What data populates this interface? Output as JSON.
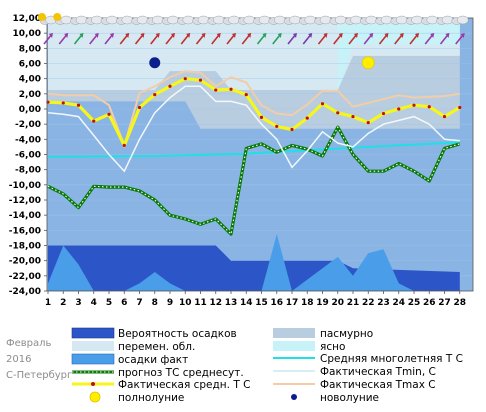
{
  "chart_data": {
    "type": "line",
    "period": {
      "month": "Февраль",
      "year": "2016",
      "city": "С-Петербург"
    },
    "ylim": [
      -24,
      12
    ],
    "y_ticks": [
      "12,00",
      "10,00",
      "8,00",
      "6,00",
      "4,00",
      "2,00",
      "0,00",
      "-2,00",
      "-4,00",
      "-6,00",
      "-8,00",
      "-10,00",
      "-12,00",
      "-14,00",
      "-16,00",
      "-18,00",
      "-20,00",
      "-22,00",
      "-24,00"
    ],
    "x_ticks": [
      "1",
      "2",
      "3",
      "4",
      "5",
      "6",
      "7",
      "8",
      "9",
      "10",
      "11",
      "12",
      "13",
      "14",
      "15",
      "16",
      "17",
      "18",
      "19",
      "20",
      "21",
      "22",
      "23",
      "24",
      "25",
      "26",
      "27",
      "28"
    ],
    "overcast": [
      [
        1,
        1
      ],
      [
        10,
        1
      ],
      [
        11,
        -2.6
      ],
      [
        14,
        -2.6
      ],
      [
        15,
        -2.6
      ],
      [
        28,
        -2.6
      ]
    ],
    "variable_clouds": [
      [
        1,
        2.5
      ],
      [
        8,
        2.5
      ],
      [
        9,
        5
      ],
      [
        12,
        5
      ],
      [
        13,
        2.5
      ],
      [
        20,
        2.5
      ],
      [
        21,
        7
      ],
      [
        28,
        7
      ]
    ],
    "clear": [
      [
        20,
        2.5
      ],
      [
        21,
        8.5
      ],
      [
        28,
        8.5
      ]
    ],
    "precip_probability": [
      [
        1,
        -18
      ],
      [
        12,
        -18
      ],
      [
        13,
        -20
      ],
      [
        20,
        -20
      ],
      [
        21,
        -21
      ],
      [
        28,
        -21.5
      ]
    ],
    "precip_fact": [
      [
        1,
        -23
      ],
      [
        2,
        -18
      ],
      [
        3,
        -20.5
      ],
      [
        4,
        -24
      ],
      [
        6,
        -24
      ],
      [
        7,
        -23
      ],
      [
        8,
        -21.5
      ],
      [
        9,
        -23
      ],
      [
        10,
        -24
      ],
      [
        14,
        -24
      ],
      [
        15,
        -24
      ],
      [
        16,
        -16.5
      ],
      [
        17,
        -24
      ],
      [
        20,
        -19.5
      ],
      [
        21,
        -22
      ],
      [
        22,
        -19
      ],
      [
        23,
        -18.5
      ],
      [
        24,
        -23
      ],
      [
        25,
        -24
      ],
      [
        28,
        -24
      ]
    ],
    "climate_norm": [
      [
        1,
        -6.3
      ],
      [
        8,
        -6.2
      ],
      [
        14,
        -5.9
      ],
      [
        21,
        -5.1
      ],
      [
        28,
        -4.4
      ]
    ],
    "forecast_mean": [
      -10.2,
      -11.2,
      -13,
      -10.2,
      -10.3,
      -10.3,
      -10.8,
      -12,
      -14,
      -14.5,
      -15.2,
      -14.5,
      -16.5,
      -5.2,
      -4.6,
      -5.7,
      -4.8,
      -5.3,
      -6.2,
      -2.4,
      -6,
      -8.2,
      -8.2,
      -7.2,
      -8.2,
      -9.5,
      -5.2,
      -4.6
    ],
    "actual_mean": [
      0.9,
      0.8,
      0.5,
      -1.6,
      -0.7,
      -4.8,
      0.2,
      1.9,
      3,
      4,
      3.8,
      2.5,
      2.6,
      1.9,
      -1.1,
      -2.3,
      -2.7,
      -1.2,
      0.7,
      -0.5,
      -1,
      -1.8,
      -0.6,
      0,
      0.5,
      0.3,
      -1,
      0.2
    ],
    "actual_tmin": [
      -0.5,
      -0.7,
      -1,
      -3.5,
      -6,
      -8.2,
      -4,
      -0.5,
      1.5,
      3,
      3,
      1,
      1,
      0.5,
      -2,
      -4,
      -7.7,
      -5.5,
      -3,
      -4.5,
      -5,
      -3.2,
      -2,
      -1.5,
      -1,
      -2,
      -4,
      -4.2
    ],
    "actual_tmax": [
      2,
      1.8,
      1.8,
      1.8,
      0.5,
      -4.8,
      2.1,
      3,
      4.2,
      5,
      4.8,
      3,
      4.2,
      3.5,
      0.5,
      -0.6,
      -0.8,
      0.6,
      2.4,
      2.4,
      0.3,
      0.8,
      1.3,
      1.8,
      1.5,
      1.6,
      1.7,
      2
    ],
    "full_moon": {
      "day": 22,
      "y": 6.1
    },
    "new_moon": {
      "day": 8,
      "y": 6.1
    },
    "wind_arrow_colors": [
      "#9a3aa8",
      "#9a3aa8",
      "#2aa05a",
      "#9a3aa8",
      "#9a3aa8",
      "#c03030",
      "#c03030",
      "#c03030",
      "#c03030",
      "#c03030",
      "#c03030",
      "#c03030",
      "#c03030",
      "#c03030",
      "#2aa05a",
      "#2aa05a",
      "#7a3aa8",
      "#7a3aa8",
      "#c03030",
      "#c03030",
      "#c03030",
      "#9a3aa8",
      "#c03030",
      "#c03030",
      "#c03030",
      "#9a3aa8",
      "#9a3aa8",
      "#9a3aa8"
    ],
    "colors": {
      "plot_bg": "#8ab4e3",
      "overcast": "#b9cde0",
      "variable_clouds": "#d6e9f2",
      "clear": "#c6f2f8",
      "precip_probability": "#2c56c7",
      "precip_fact": "#4a9de9",
      "climate_norm": "#1ee0e5",
      "forecast_mean": "#0a7a0a",
      "actual_mean": "#f6f61a",
      "tmin": "#f2f8fb",
      "tmax": "#f1cda9",
      "full_moon": "#ffee00",
      "new_moon": "#0c1e8c"
    },
    "legend": {
      "precip_probability": "Вероятность осадков",
      "variable_clouds": "перемен. обл.",
      "precip_fact": "осадки факт",
      "forecast_mean": "прогноз ТС среднесут.",
      "actual_mean": "Фактическая средн. Т С",
      "full_moon": "полнолуние",
      "overcast": "пасмурно",
      "clear": "ясно",
      "climate_norm": "Средняя многолетняя Т С",
      "tmin": "Фактическая Tmin, С",
      "tmax": "Фактическая Tmax С",
      "new_moon": "новолуние"
    }
  }
}
